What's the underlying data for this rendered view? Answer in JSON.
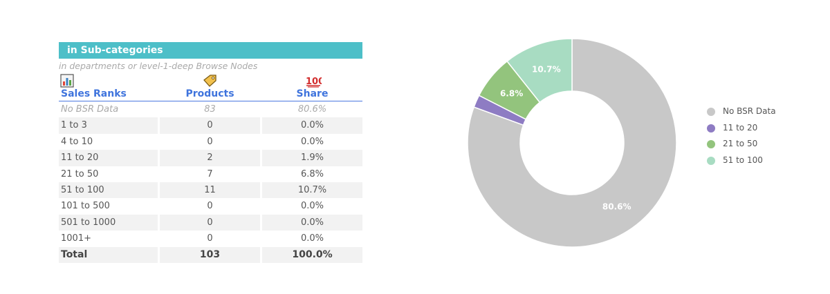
{
  "table": {
    "title": "in Sub-categories",
    "subtitle": "in departments or level-1-deep Browse Nodes",
    "icons": {
      "sales_ranks": "bar-chart-icon",
      "products": "price-tag-icon",
      "share": "hundred-points-icon"
    },
    "columns": [
      "Sales Ranks",
      "Products",
      "Share"
    ],
    "rows": [
      {
        "rank": "No BSR Data",
        "products": "83",
        "share": "80.6%"
      },
      {
        "rank": "1 to 3",
        "products": "0",
        "share": "0.0%"
      },
      {
        "rank": "4 to 10",
        "products": "0",
        "share": "0.0%"
      },
      {
        "rank": "11 to 20",
        "products": "2",
        "share": "1.9%"
      },
      {
        "rank": "21 to 50",
        "products": "7",
        "share": "6.8%"
      },
      {
        "rank": "51 to 100",
        "products": "11",
        "share": "10.7%"
      },
      {
        "rank": "101 to 500",
        "products": "0",
        "share": "0.0%"
      },
      {
        "rank": "501 to 1000",
        "products": "0",
        "share": "0.0%"
      },
      {
        "rank": "1001+",
        "products": "0",
        "share": "0.0%"
      }
    ],
    "total": {
      "rank": "Total",
      "products": "103",
      "share": "100.0%"
    }
  },
  "chart_data": {
    "type": "pie",
    "donut": true,
    "legend_position": "right",
    "series": [
      {
        "name": "No BSR Data",
        "value": 83,
        "label": "80.6%",
        "color": "#c8c8c8"
      },
      {
        "name": "11 to 20",
        "value": 2,
        "label": "",
        "color": "#8e7cc3"
      },
      {
        "name": "21 to 50",
        "value": 7,
        "label": "6.8%",
        "color": "#93c47d"
      },
      {
        "name": "51 to 100",
        "value": 11,
        "label": "10.7%",
        "color": "#a8dcc2"
      }
    ]
  }
}
